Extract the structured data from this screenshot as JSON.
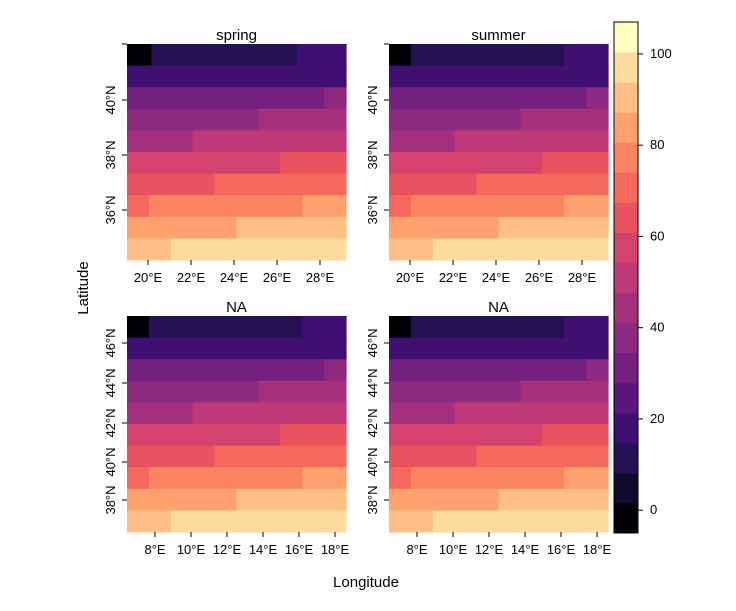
{
  "chart_data": {
    "type": "heatmap",
    "xlabel": "Longitude",
    "ylabel": "Latitude",
    "colormap": [
      "#000004",
      "#0e0b2b",
      "#251255",
      "#3f0f72",
      "#5a167e",
      "#73207f",
      "#8c2981",
      "#a5317e",
      "#bd3977",
      "#d3436e",
      "#e8535f",
      "#f5685b",
      "#fb8561",
      "#fea16e",
      "#febf84",
      "#fcdc9e",
      "#fcfdbf"
    ],
    "color_scale": {
      "min": -5,
      "max": 107,
      "ticks": [
        0,
        20,
        40,
        60,
        80,
        100
      ]
    },
    "panels": [
      {
        "title": "spring",
        "x_ticks": [
          "20°E",
          "22°E",
          "24°E",
          "26°E",
          "28°E"
        ],
        "y_ticks": [
          "36°N",
          "38°N",
          "40°N"
        ],
        "rows": [
          {
            "cells": [
              [
                1,
                2
              ],
              [
                11,
                12
              ],
              [
                18,
                4
              ]
            ]
          },
          {
            "cells": [
              [
                17,
                9
              ],
              [
                21,
                9
              ]
            ]
          },
          {
            "cells": [
              [
                28,
                4
              ],
              [
                33,
                14
              ],
              [
                40,
                2
              ]
            ]
          },
          {
            "cells": [
              [
                40,
                12
              ],
              [
                46,
                8
              ]
            ]
          },
          {
            "cells": [
              [
                45,
                6
              ],
              [
                52,
                14
              ]
            ]
          },
          {
            "cells": [
              [
                57,
                14
              ],
              [
                62,
                6
              ]
            ]
          },
          {
            "cells": [
              [
                62,
                8
              ],
              [
                68,
                12
              ]
            ]
          },
          {
            "cells": [
              [
                72,
                2
              ],
              [
                78,
                14
              ],
              [
                83,
                4
              ]
            ]
          },
          {
            "cells": [
              [
                83,
                10
              ],
              [
                89,
                10
              ]
            ]
          },
          {
            "cells": [
              [
                88,
                4
              ],
              [
                94,
                14
              ],
              [
                100,
                2
              ]
            ]
          }
        ]
      },
      {
        "title": "summer",
        "x_ticks": [
          "20°E",
          "22°E",
          "24°E",
          "26°E",
          "28°E"
        ],
        "y_ticks": [
          "36°N",
          "38°N",
          "40°N"
        ],
        "rows": [
          {
            "cells": [
              [
                1,
                2
              ],
              [
                11,
                14
              ],
              [
                18,
                4
              ]
            ]
          },
          {
            "cells": [
              [
                17,
                10
              ],
              [
                21,
                10
              ]
            ]
          },
          {
            "cells": [
              [
                28,
                4
              ],
              [
                33,
                14
              ],
              [
                40,
                2
              ]
            ]
          },
          {
            "cells": [
              [
                40,
                12
              ],
              [
                46,
                8
              ]
            ]
          },
          {
            "cells": [
              [
                45,
                6
              ],
              [
                52,
                14
              ]
            ]
          },
          {
            "cells": [
              [
                57,
                14
              ],
              [
                62,
                6
              ]
            ]
          },
          {
            "cells": [
              [
                62,
                8
              ],
              [
                68,
                12
              ]
            ]
          },
          {
            "cells": [
              [
                72,
                2
              ],
              [
                78,
                14
              ],
              [
                83,
                4
              ]
            ]
          },
          {
            "cells": [
              [
                83,
                10
              ],
              [
                89,
                10
              ]
            ]
          },
          {
            "cells": [
              [
                88,
                4
              ],
              [
                94,
                14
              ],
              [
                100,
                2
              ]
            ]
          }
        ]
      },
      {
        "title": "NA",
        "x_ticks": [
          "8°E",
          "10°E",
          "12°E",
          "14°E",
          "16°E",
          "18°E"
        ],
        "y_ticks": [
          "38°N",
          "40°N",
          "42°N",
          "44°N",
          "46°N"
        ],
        "rows": [
          {
            "cells": [
              [
                1,
                2
              ],
              [
                11,
                14
              ],
              [
                18,
                4
              ]
            ]
          },
          {
            "cells": [
              [
                17,
                10
              ],
              [
                21,
                10
              ]
            ]
          },
          {
            "cells": [
              [
                28,
                4
              ],
              [
                33,
                14
              ],
              [
                40,
                2
              ]
            ]
          },
          {
            "cells": [
              [
                40,
                12
              ],
              [
                46,
                8
              ]
            ]
          },
          {
            "cells": [
              [
                45,
                6
              ],
              [
                52,
                14
              ]
            ]
          },
          {
            "cells": [
              [
                57,
                14
              ],
              [
                62,
                6
              ]
            ]
          },
          {
            "cells": [
              [
                62,
                8
              ],
              [
                68,
                12
              ]
            ]
          },
          {
            "cells": [
              [
                72,
                2
              ],
              [
                78,
                14
              ],
              [
                83,
                4
              ]
            ]
          },
          {
            "cells": [
              [
                83,
                10
              ],
              [
                89,
                10
              ]
            ]
          },
          {
            "cells": [
              [
                88,
                4
              ],
              [
                94,
                14
              ],
              [
                100,
                2
              ]
            ]
          }
        ]
      },
      {
        "title": "NA",
        "x_ticks": [
          "8°E",
          "10°E",
          "12°E",
          "14°E",
          "16°E",
          "18°E"
        ],
        "y_ticks": [
          "38°N",
          "40°N",
          "42°N",
          "44°N",
          "46°N"
        ],
        "rows": [
          {
            "cells": [
              [
                1,
                2
              ],
              [
                11,
                14
              ],
              [
                18,
                4
              ]
            ]
          },
          {
            "cells": [
              [
                17,
                10
              ],
              [
                21,
                10
              ]
            ]
          },
          {
            "cells": [
              [
                28,
                4
              ],
              [
                33,
                14
              ],
              [
                40,
                2
              ]
            ]
          },
          {
            "cells": [
              [
                40,
                12
              ],
              [
                46,
                8
              ]
            ]
          },
          {
            "cells": [
              [
                45,
                6
              ],
              [
                52,
                14
              ]
            ]
          },
          {
            "cells": [
              [
                57,
                14
              ],
              [
                62,
                6
              ]
            ]
          },
          {
            "cells": [
              [
                62,
                8
              ],
              [
                68,
                12
              ]
            ]
          },
          {
            "cells": [
              [
                72,
                2
              ],
              [
                78,
                14
              ],
              [
                83,
                4
              ]
            ]
          },
          {
            "cells": [
              [
                83,
                10
              ],
              [
                89,
                10
              ]
            ]
          },
          {
            "cells": [
              [
                88,
                4
              ],
              [
                94,
                14
              ],
              [
                100,
                2
              ]
            ]
          }
        ]
      }
    ]
  }
}
